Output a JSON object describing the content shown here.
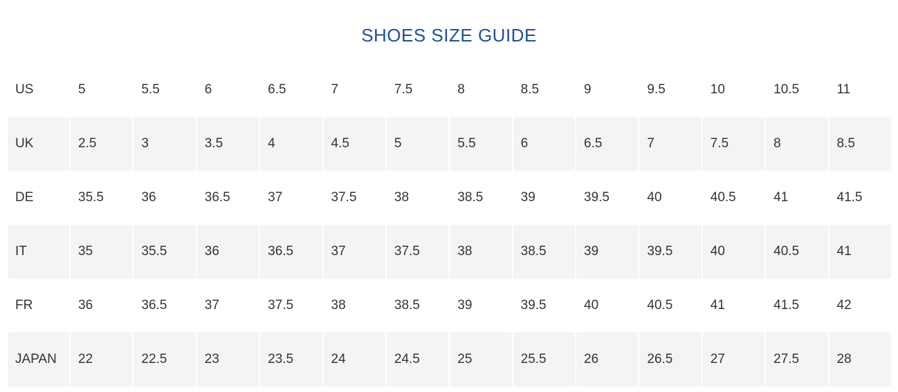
{
  "title": "SHOES SIZE GUIDE",
  "rows": [
    {
      "label": "US",
      "values": [
        "5",
        "5.5",
        "6",
        "6.5",
        "7",
        "7.5",
        "8",
        "8.5",
        "9",
        "9.5",
        "10",
        "10.5",
        "11"
      ]
    },
    {
      "label": "UK",
      "values": [
        "2.5",
        "3",
        "3.5",
        "4",
        "4.5",
        "5",
        "5.5",
        "6",
        "6.5",
        "7",
        "7.5",
        "8",
        "8.5"
      ]
    },
    {
      "label": "DE",
      "values": [
        "35.5",
        "36",
        "36.5",
        "37",
        "37.5",
        "38",
        "38.5",
        "39",
        "39.5",
        "40",
        "40.5",
        "41",
        "41.5"
      ]
    },
    {
      "label": "IT",
      "values": [
        "35",
        "35.5",
        "36",
        "36.5",
        "37",
        "37.5",
        "38",
        "38.5",
        "39",
        "39.5",
        "40",
        "40.5",
        "41"
      ]
    },
    {
      "label": "FR",
      "values": [
        "36",
        "36.5",
        "37",
        "37.5",
        "38",
        "38.5",
        "39",
        "39.5",
        "40",
        "40.5",
        "41",
        "41.5",
        "42"
      ]
    },
    {
      "label": "JAPAN",
      "values": [
        "22",
        "22.5",
        "23",
        "23.5",
        "24",
        "24.5",
        "25",
        "25.5",
        "26",
        "26.5",
        "27",
        "27.5",
        "28"
      ]
    }
  ],
  "colors": {
    "title": "#1f4f98",
    "shaded_row": "#f4f4f6",
    "text": "#333333"
  }
}
